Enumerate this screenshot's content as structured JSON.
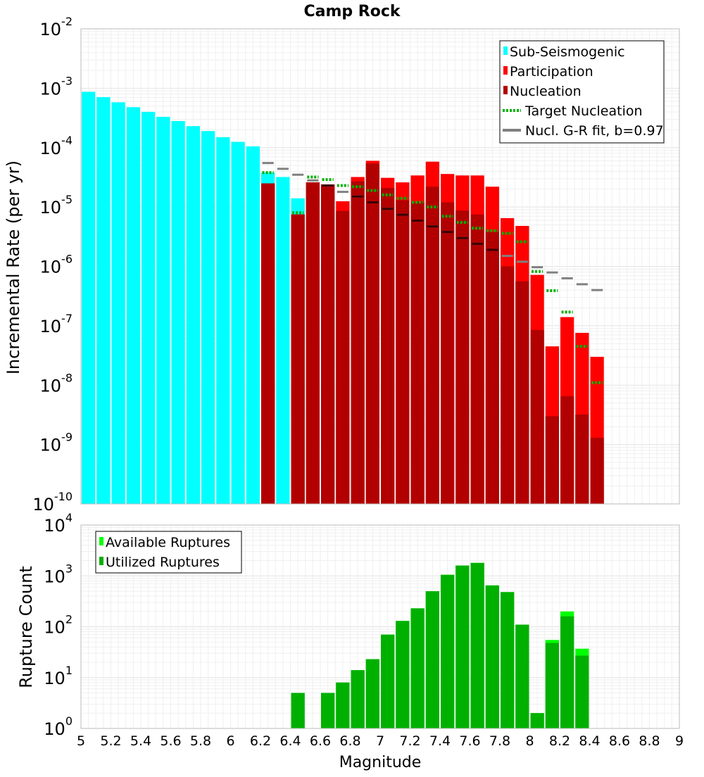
{
  "chart_data": [
    {
      "type": "bar",
      "title": "Camp Rock",
      "xlabel": "",
      "ylabel": "Incremental Rate (per yr)",
      "yscale": "log",
      "xlim": [
        5,
        9
      ],
      "ylim": [
        1e-10,
        0.01
      ],
      "bin_width": 0.1,
      "grid": true,
      "legend_position": "top-right",
      "y_tick_exponents": [
        "-10",
        "-9",
        "-8",
        "-7",
        "-6",
        "-5",
        "-4",
        "-3",
        "-2"
      ],
      "legend": [
        "Sub-Seismogenic",
        "Participation",
        "Nucleation",
        "Target Nucleation",
        "Nucl. G-R fit, b=0.97"
      ],
      "series": [
        {
          "name": "Sub-Seismogenic",
          "color": "#00FFFF",
          "style": "bar",
          "x": [
            5.05,
            5.15,
            5.25,
            5.35,
            5.45,
            5.55,
            5.65,
            5.75,
            5.85,
            5.95,
            6.05,
            6.15,
            6.25,
            6.35,
            6.45
          ],
          "values": [
            0.00087,
            0.00071,
            0.00058,
            0.00048,
            0.0004,
            0.00033,
            0.00028,
            0.00023,
            0.00019,
            0.00015,
            0.000125,
            0.000105,
            3.8e-05,
            3.2e-05,
            1.4e-05
          ]
        },
        {
          "name": "Participation",
          "color": "#FF0000",
          "style": "bar",
          "x": [
            6.25,
            6.45,
            6.55,
            6.65,
            6.75,
            6.85,
            6.95,
            7.05,
            7.15,
            7.25,
            7.35,
            7.45,
            7.55,
            7.65,
            7.75,
            7.85,
            7.95,
            8.05,
            8.15,
            8.25,
            8.35,
            8.45
          ],
          "values": [
            2.5e-05,
            7.5e-06,
            2.6e-05,
            2.4e-05,
            1.25e-05,
            3.2e-05,
            6e-05,
            3.1e-05,
            2.6e-05,
            3.4e-05,
            5.8e-05,
            3.6e-05,
            3.4e-05,
            3.4e-05,
            2.2e-05,
            6.5e-06,
            4.8e-06,
            7.2e-07,
            4.5e-08,
            1.4e-07,
            7.6e-08,
            3e-08
          ]
        },
        {
          "name": "Nucleation",
          "color": "#B20000",
          "style": "bar",
          "x": [
            6.25,
            6.45,
            6.55,
            6.65,
            6.75,
            6.85,
            6.95,
            7.05,
            7.15,
            7.25,
            7.35,
            7.45,
            7.55,
            7.65,
            7.75,
            7.85,
            7.95,
            8.05,
            8.15,
            8.25,
            8.35,
            8.45
          ],
          "values": [
            2.5e-05,
            7.5e-06,
            2.6e-05,
            2.4e-05,
            8.6e-06,
            2.7e-05,
            5.4e-05,
            2.1e-05,
            1.3e-05,
            1.2e-05,
            2.2e-05,
            1.2e-05,
            8.7e-06,
            7.5e-06,
            3.8e-06,
            1e-06,
            5.6e-07,
            8.5e-08,
            3e-09,
            6.5e-09,
            3.2e-09,
            1.3e-09
          ]
        },
        {
          "name": "Target Nucleation",
          "color": "#00B000",
          "style": "dotted-step",
          "x": [
            6.25,
            6.45,
            6.55,
            6.65,
            6.75,
            6.85,
            6.95,
            7.05,
            7.15,
            7.25,
            7.35,
            7.45,
            7.55,
            7.65,
            7.75,
            7.85,
            7.95,
            8.05,
            8.15,
            8.25,
            8.35,
            8.45
          ],
          "values": [
            3.8e-05,
            8e-06,
            3.2e-05,
            2.9e-05,
            2.3e-05,
            2.2e-05,
            1.9e-05,
            1.6e-05,
            1.4e-05,
            1.2e-05,
            1e-05,
            7e-06,
            5.5e-06,
            4.4e-06,
            4e-06,
            3.6e-06,
            2.6e-06,
            8.2e-07,
            3.9e-07,
            1.7e-07,
            4.5e-08,
            1.1e-08
          ]
        },
        {
          "name": "Nucl. G-R fit, b=0.97",
          "color": "#808080",
          "style": "step",
          "x": [
            6.25,
            6.35,
            6.45,
            6.55,
            6.65,
            6.75,
            6.85,
            6.95,
            7.05,
            7.15,
            7.25,
            7.35,
            7.45,
            7.55,
            7.65,
            7.75,
            7.85,
            7.95,
            8.05,
            8.15,
            8.25,
            8.35,
            8.45
          ],
          "values": [
            5.5e-05,
            4.4e-05,
            3.5e-05,
            2.8e-05,
            2.3e-05,
            1.8e-05,
            1.5e-05,
            1.2e-05,
            9.3e-06,
            7.4e-06,
            5.9e-06,
            4.7e-06,
            3.8e-06,
            3e-06,
            2.4e-06,
            1.9e-06,
            1.5e-06,
            1.2e-06,
            9.7e-07,
            7.9e-07,
            6.3e-07,
            5e-07,
            4e-07
          ]
        }
      ]
    },
    {
      "type": "bar",
      "title": "",
      "xlabel": "Magnitude",
      "ylabel": "Rupture Count",
      "yscale": "log",
      "xlim": [
        5,
        9
      ],
      "ylim": [
        1,
        10000
      ],
      "bin_width": 0.1,
      "grid": true,
      "legend_position": "top-left",
      "x_ticks": [
        "5",
        "5.2",
        "5.4",
        "5.6",
        "5.8",
        "6",
        "6.2",
        "6.4",
        "6.6",
        "6.8",
        "7",
        "7.2",
        "7.4",
        "7.6",
        "7.8",
        "8",
        "8.2",
        "8.4",
        "8.6",
        "8.8",
        "9"
      ],
      "y_tick_exponents": [
        "0",
        "1",
        "2",
        "3",
        "4"
      ],
      "legend": [
        "Available Ruptures",
        "Utilized Ruptures"
      ],
      "series": [
        {
          "name": "Available Ruptures",
          "color": "#00FF00",
          "style": "bar",
          "x": [
            6.45,
            6.65,
            6.75,
            6.85,
            6.95,
            7.05,
            7.15,
            7.25,
            7.35,
            7.45,
            7.55,
            7.65,
            7.75,
            7.85,
            7.95,
            8.05,
            8.15,
            8.25,
            8.35
          ],
          "values": [
            5,
            5,
            8,
            14,
            23,
            70,
            130,
            230,
            500,
            1050,
            1600,
            1800,
            650,
            480,
            110,
            2,
            55,
            200,
            37
          ]
        },
        {
          "name": "Utilized Ruptures",
          "color": "#00B000",
          "style": "bar",
          "x": [
            6.45,
            6.65,
            6.75,
            6.85,
            6.95,
            7.05,
            7.15,
            7.25,
            7.35,
            7.45,
            7.55,
            7.65,
            7.75,
            7.85,
            7.95,
            8.05,
            8.15,
            8.25,
            8.35
          ],
          "values": [
            5,
            5,
            8,
            14,
            23,
            70,
            130,
            230,
            500,
            1050,
            1600,
            1800,
            650,
            480,
            110,
            2,
            48,
            160,
            27
          ]
        }
      ]
    }
  ]
}
